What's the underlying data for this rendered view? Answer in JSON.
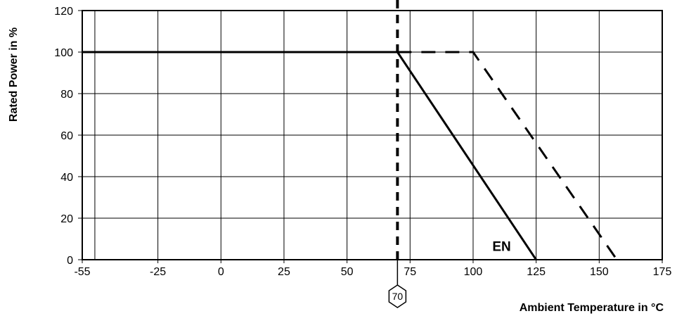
{
  "chart_data": {
    "type": "line",
    "xlabel": "Ambient Temperature in °C",
    "ylabel": "Rated Power in %",
    "xlim": [
      -55,
      175
    ],
    "ylim": [
      0,
      120
    ],
    "x_ticks": [
      -55,
      -25,
      0,
      25,
      50,
      75,
      100,
      125,
      150,
      175
    ],
    "y_ticks": [
      0,
      20,
      40,
      60,
      80,
      100,
      120
    ],
    "x_gridlines": [
      -50,
      -25,
      0,
      25,
      50,
      75,
      100,
      125,
      150
    ],
    "grid": true,
    "series": [
      {
        "style": "solid",
        "x": [
          -55,
          70,
          125
        ],
        "y": [
          100,
          100,
          0
        ]
      },
      {
        "style": "dashed",
        "x": [
          70,
          100,
          157
        ],
        "y": [
          100,
          100,
          0
        ]
      }
    ],
    "reference_line": {
      "x": 70,
      "style": "dashed",
      "marker_label": "70"
    },
    "annotations": [
      {
        "text": "EN",
        "x": 115,
        "y": 5
      }
    ]
  }
}
